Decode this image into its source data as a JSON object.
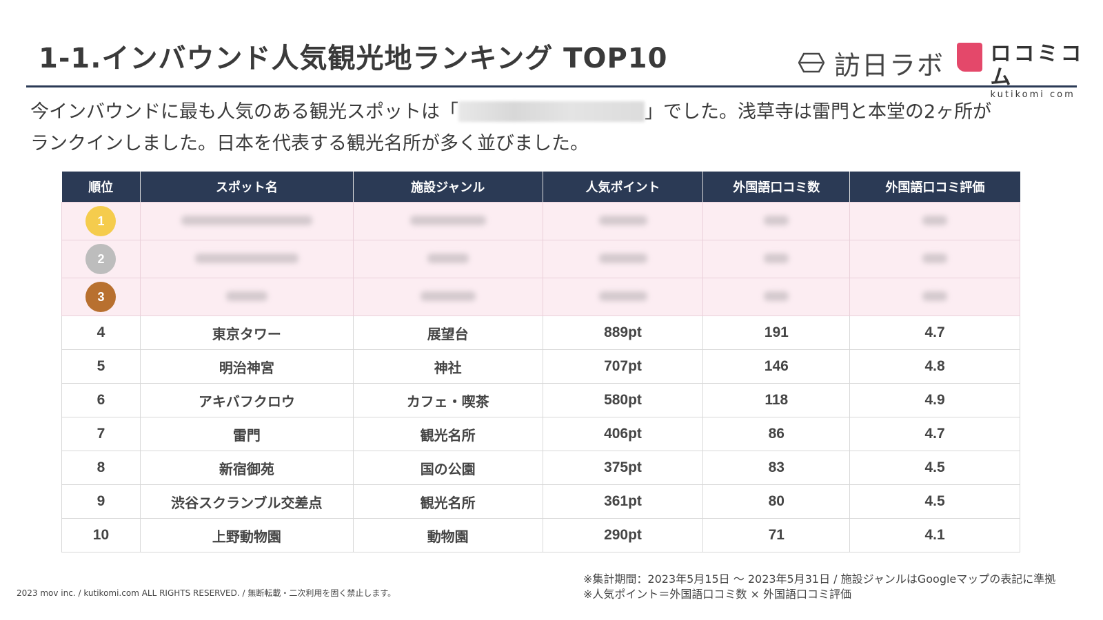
{
  "title": "1-1.インバウンド人気観光地ランキング TOP10",
  "logos": {
    "houjin": "訪日ラボ",
    "kutikomi_main": "ロコミコム",
    "kutikomi_sub": "kutikomi com"
  },
  "lead": {
    "line1_before": "今インバウンドに最も人気のある観光スポットは「",
    "line1_after": "」でした。浅草寺は雷門と本堂の2ヶ所が",
    "line2": "ランクインしました。日本を代表する観光名所が多く並びました。"
  },
  "table": {
    "headers": [
      "順位",
      "スポット名",
      "施設ジャンル",
      "人気ポイント",
      "外国語口コミ数",
      "外国語口コミ評価"
    ],
    "top3": [
      {
        "rank": "1",
        "medal_color": "#f5cc4d"
      },
      {
        "rank": "2",
        "medal_color": "#bdbdbd"
      },
      {
        "rank": "3",
        "medal_color": "#b8702f"
      }
    ],
    "rows": [
      {
        "rank": "4",
        "spot": "東京タワー",
        "genre": "展望台",
        "points": "889pt",
        "reviews": "191",
        "rating": "4.7"
      },
      {
        "rank": "5",
        "spot": "明治神宮",
        "genre": "神社",
        "points": "707pt",
        "reviews": "146",
        "rating": "4.8"
      },
      {
        "rank": "6",
        "spot": "アキバフクロウ",
        "genre": "カフェ・喫茶",
        "points": "580pt",
        "reviews": "118",
        "rating": "4.9"
      },
      {
        "rank": "7",
        "spot": "雷門",
        "genre": "観光名所",
        "points": "406pt",
        "reviews": "86",
        "rating": "4.7"
      },
      {
        "rank": "8",
        "spot": "新宿御苑",
        "genre": "国の公園",
        "points": "375pt",
        "reviews": "83",
        "rating": "4.5"
      },
      {
        "rank": "9",
        "spot": "渋谷スクランブル交差点",
        "genre": "観光名所",
        "points": "361pt",
        "reviews": "80",
        "rating": "4.5"
      },
      {
        "rank": "10",
        "spot": "上野動物園",
        "genre": "動物園",
        "points": "290pt",
        "reviews": "71",
        "rating": "4.1"
      }
    ]
  },
  "footer": {
    "copyright": "2023 mov inc. / kutikomi.com ALL RIGHTS RESERVED. / 無断転載・二次利用を固く禁止します。",
    "note1": "※集計期間：2023年5月15日 〜 2023年5月31日 / 施設ジャンルはGoogleマップの表記に準拠",
    "note2": "※人気ポイント＝外国語口コミ数 × 外国語口コミ評価"
  },
  "colors": {
    "header_bg": "#2b3a55",
    "top3_bg": "#fcedf2",
    "brand_pink": "#e4486a"
  }
}
